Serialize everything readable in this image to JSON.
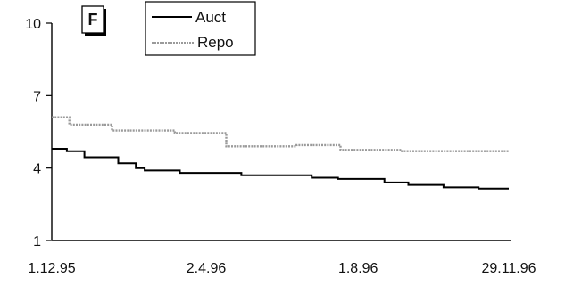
{
  "chart_data": {
    "type": "line",
    "panel_label": "F",
    "title": "",
    "xlabel": "",
    "ylabel": "",
    "x_range": [
      "1.12.95",
      "29.11.96"
    ],
    "x_tick_labels": [
      "1.12.95",
      "2.4.96",
      "1.8.96",
      "29.11.96"
    ],
    "x_tick_dates": [
      "1995-12-01",
      "1996-04-02",
      "1996-08-01",
      "1996-11-29"
    ],
    "ylim": [
      1,
      10
    ],
    "y_ticks": [
      1,
      4,
      7,
      10
    ],
    "y_tick_labels": [
      "1",
      "4",
      "7",
      "10"
    ],
    "grid": false,
    "legend_position": "top-center",
    "series": [
      {
        "name": "Auct",
        "color": "#000000",
        "style": "solid-step",
        "points": [
          [
            "1995-12-01",
            4.8
          ],
          [
            "1995-12-13",
            4.7
          ],
          [
            "1995-12-27",
            4.45
          ],
          [
            "1996-01-23",
            4.2
          ],
          [
            "1996-02-06",
            4.0
          ],
          [
            "1996-02-13",
            3.9
          ],
          [
            "1996-03-12",
            3.8
          ],
          [
            "1996-04-30",
            3.7
          ],
          [
            "1996-06-25",
            3.6
          ],
          [
            "1996-07-16",
            3.55
          ],
          [
            "1996-08-22",
            3.4
          ],
          [
            "1996-09-10",
            3.3
          ],
          [
            "1996-10-08",
            3.2
          ],
          [
            "1996-11-05",
            3.15
          ],
          [
            "1996-11-29",
            3.15
          ]
        ]
      },
      {
        "name": "Repo",
        "color": "#9a9a9a",
        "style": "dotted-step",
        "points": [
          [
            "1995-12-01",
            6.1
          ],
          [
            "1995-12-15",
            5.8
          ],
          [
            "1996-01-18",
            5.55
          ],
          [
            "1996-03-08",
            5.45
          ],
          [
            "1996-04-18",
            4.9
          ],
          [
            "1996-06-13",
            4.95
          ],
          [
            "1996-07-18",
            4.75
          ],
          [
            "1996-09-05",
            4.7
          ],
          [
            "1996-11-29",
            4.7
          ]
        ]
      }
    ]
  }
}
